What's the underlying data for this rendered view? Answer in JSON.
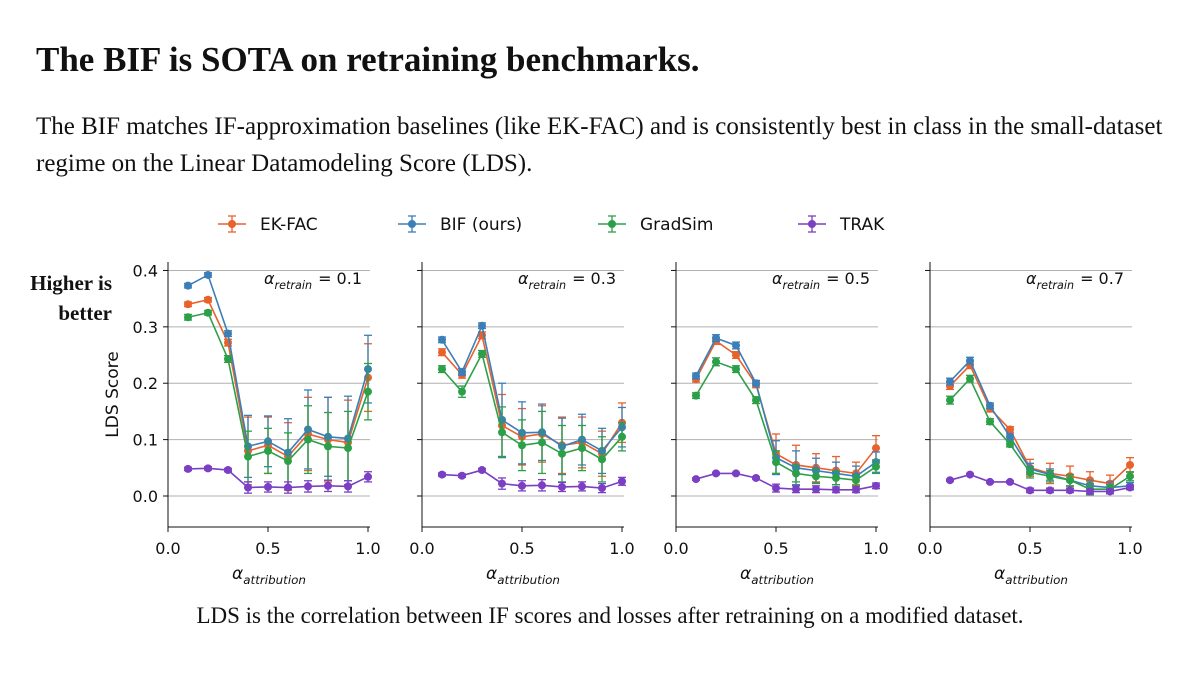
{
  "header": {
    "title": "The BIF is SOTA on retraining benchmarks.",
    "subtitle": "The BIF matches IF-approximation baselines (like EK-FAC) and is consistently best in class in the small-dataset regime on the Linear Datamodeling Score (LDS)."
  },
  "annotation": "Higher is better",
  "footer": "LDS is the correlation between IF scores and losses after retraining on a modified dataset.",
  "chart_data": [
    {
      "type": "line",
      "title": {
        "symbol": "α",
        "subscript": "retrain",
        "text": "= 0.1"
      },
      "xlabel": {
        "symbol": "α",
        "subscript": "attribution"
      },
      "ylabel": "LDS Score",
      "show_ytick_labels": true,
      "x": [
        0.1,
        0.2,
        0.3,
        0.4,
        0.5,
        0.6,
        0.7,
        0.8,
        0.9,
        1.0
      ],
      "xlim": [
        0,
        1.01
      ],
      "xticks": [
        {
          "value": 0,
          "label": "0.0"
        },
        0.5,
        {
          "value": 1,
          "label": "1.0"
        }
      ],
      "ylim": [
        -0.055,
        0.415
      ],
      "yticks": [
        {
          "value": 0,
          "label": "0.0"
        },
        0.1,
        0.2,
        0.3,
        0.4
      ],
      "grid": true,
      "series": [
        {
          "name": "EK-FAC",
          "color": "#e8622c",
          "values": [
            0.34,
            0.348,
            0.272,
            0.08,
            0.09,
            0.07,
            0.11,
            0.1,
            0.095,
            0.21
          ],
          "errors": [
            0.004,
            0.004,
            0.006,
            0.06,
            0.05,
            0.06,
            0.065,
            0.075,
            0.075,
            0.06
          ]
        },
        {
          "name": "BIF (ours)",
          "color": "#3c7fb8",
          "values": [
            0.373,
            0.392,
            0.288,
            0.088,
            0.097,
            0.077,
            0.118,
            0.105,
            0.102,
            0.225
          ],
          "errors": [
            0.004,
            0.004,
            0.005,
            0.055,
            0.045,
            0.06,
            0.07,
            0.07,
            0.075,
            0.06
          ]
        },
        {
          "name": "GradSim",
          "color": "#2ca048",
          "values": [
            0.317,
            0.325,
            0.243,
            0.07,
            0.08,
            0.062,
            0.1,
            0.088,
            0.085,
            0.185
          ],
          "errors": [
            0.005,
            0.004,
            0.006,
            0.045,
            0.04,
            0.05,
            0.06,
            0.06,
            0.065,
            0.05
          ]
        },
        {
          "name": "TRAK",
          "color": "#7b3fc4",
          "values": [
            0.048,
            0.049,
            0.046,
            0.015,
            0.016,
            0.015,
            0.017,
            0.018,
            0.017,
            0.034
          ],
          "errors": [
            0.003,
            0.003,
            0.003,
            0.01,
            0.009,
            0.01,
            0.01,
            0.01,
            0.01,
            0.009
          ]
        }
      ]
    },
    {
      "type": "line",
      "title": {
        "symbol": "α",
        "subscript": "retrain",
        "text": "= 0.3"
      },
      "xlabel": {
        "symbol": "α",
        "subscript": "attribution"
      },
      "show_ytick_labels": false,
      "x": [
        0.1,
        0.2,
        0.3,
        0.4,
        0.5,
        0.6,
        0.7,
        0.8,
        0.9,
        1.0
      ],
      "xlim": [
        0,
        1.01
      ],
      "xticks": [
        {
          "value": 0,
          "label": "0.0"
        },
        0.5,
        {
          "value": 1,
          "label": "1.0"
        }
      ],
      "ylim": [
        -0.055,
        0.415
      ],
      "yticks": [
        {
          "value": 0,
          "label": "0.0"
        },
        0.1,
        0.2,
        0.3,
        0.4
      ],
      "grid": true,
      "series": [
        {
          "name": "EK-FAC",
          "color": "#e8622c",
          "values": [
            0.255,
            0.215,
            0.285,
            0.125,
            0.105,
            0.11,
            0.09,
            0.095,
            0.075,
            0.13
          ],
          "errors": [
            0.006,
            0.006,
            0.006,
            0.055,
            0.05,
            0.05,
            0.05,
            0.045,
            0.04,
            0.035
          ]
        },
        {
          "name": "BIF (ours)",
          "color": "#3c7fb8",
          "values": [
            0.277,
            0.22,
            0.302,
            0.135,
            0.112,
            0.113,
            0.088,
            0.1,
            0.08,
            0.122
          ],
          "errors": [
            0.005,
            0.006,
            0.005,
            0.065,
            0.055,
            0.05,
            0.05,
            0.045,
            0.04,
            0.035
          ]
        },
        {
          "name": "GradSim",
          "color": "#2ca048",
          "values": [
            0.225,
            0.185,
            0.252,
            0.113,
            0.09,
            0.095,
            0.075,
            0.085,
            0.065,
            0.105
          ],
          "errors": [
            0.006,
            0.01,
            0.006,
            0.045,
            0.045,
            0.055,
            0.05,
            0.04,
            0.04,
            0.025
          ]
        },
        {
          "name": "TRAK",
          "color": "#7b3fc4",
          "values": [
            0.038,
            0.036,
            0.046,
            0.022,
            0.018,
            0.019,
            0.016,
            0.017,
            0.014,
            0.026
          ],
          "errors": [
            0.003,
            0.003,
            0.003,
            0.01,
            0.009,
            0.01,
            0.008,
            0.008,
            0.008,
            0.007
          ]
        }
      ]
    },
    {
      "type": "line",
      "title": {
        "symbol": "α",
        "subscript": "retrain",
        "text": "= 0.5"
      },
      "xlabel": {
        "symbol": "α",
        "subscript": "attribution"
      },
      "show_ytick_labels": false,
      "x": [
        0.1,
        0.2,
        0.3,
        0.4,
        0.5,
        0.6,
        0.7,
        0.8,
        0.9,
        1.0
      ],
      "xlim": [
        0,
        1.01
      ],
      "xticks": [
        {
          "value": 0,
          "label": "0.0"
        },
        0.5,
        {
          "value": 1,
          "label": "1.0"
        }
      ],
      "ylim": [
        -0.055,
        0.415
      ],
      "yticks": [
        {
          "value": 0,
          "label": "0.0"
        },
        0.1,
        0.2,
        0.3,
        0.4
      ],
      "grid": true,
      "series": [
        {
          "name": "EK-FAC",
          "color": "#e8622c",
          "values": [
            0.207,
            0.275,
            0.25,
            0.198,
            0.075,
            0.055,
            0.05,
            0.045,
            0.04,
            0.085
          ],
          "errors": [
            0.005,
            0.006,
            0.006,
            0.006,
            0.035,
            0.035,
            0.025,
            0.025,
            0.02,
            0.022
          ]
        },
        {
          "name": "BIF (ours)",
          "color": "#3c7fb8",
          "values": [
            0.213,
            0.28,
            0.267,
            0.2,
            0.068,
            0.05,
            0.045,
            0.04,
            0.035,
            0.06
          ],
          "errors": [
            0.005,
            0.006,
            0.006,
            0.005,
            0.03,
            0.03,
            0.022,
            0.02,
            0.018,
            0.018
          ]
        },
        {
          "name": "GradSim",
          "color": "#2ca048",
          "values": [
            0.178,
            0.238,
            0.225,
            0.17,
            0.06,
            0.04,
            0.035,
            0.032,
            0.028,
            0.052
          ],
          "errors": [
            0.005,
            0.007,
            0.006,
            0.006,
            0.02,
            0.015,
            0.013,
            0.012,
            0.01,
            0.012
          ]
        },
        {
          "name": "TRAK",
          "color": "#7b3fc4",
          "values": [
            0.03,
            0.04,
            0.04,
            0.032,
            0.014,
            0.012,
            0.012,
            0.011,
            0.011,
            0.018
          ],
          "errors": [
            0.002,
            0.002,
            0.002,
            0.002,
            0.007,
            0.006,
            0.006,
            0.005,
            0.005,
            0.005
          ]
        }
      ]
    },
    {
      "type": "line",
      "title": {
        "symbol": "α",
        "subscript": "retrain",
        "text": "= 0.7"
      },
      "xlabel": {
        "symbol": "α",
        "subscript": "attribution"
      },
      "show_ytick_labels": false,
      "x": [
        0.1,
        0.2,
        0.3,
        0.4,
        0.5,
        0.6,
        0.7,
        0.8,
        0.9,
        1.0
      ],
      "xlim": [
        0,
        1.01
      ],
      "xticks": [
        {
          "value": 0,
          "label": "0.0"
        },
        0.5,
        {
          "value": 1,
          "label": "1.0"
        }
      ],
      "ylim": [
        -0.055,
        0.415
      ],
      "yticks": [
        {
          "value": 0,
          "label": "0.0"
        },
        0.1,
        0.2,
        0.3,
        0.4
      ],
      "grid": true,
      "series": [
        {
          "name": "EK-FAC",
          "color": "#e8622c",
          "values": [
            0.195,
            0.232,
            0.155,
            0.118,
            0.05,
            0.04,
            0.035,
            0.028,
            0.022,
            0.055
          ],
          "errors": [
            0.006,
            0.006,
            0.006,
            0.005,
            0.015,
            0.018,
            0.018,
            0.015,
            0.015,
            0.013
          ]
        },
        {
          "name": "BIF (ours)",
          "color": "#3c7fb8",
          "values": [
            0.203,
            0.24,
            0.16,
            0.105,
            0.048,
            0.038,
            0.028,
            0.018,
            0.015,
            0.018
          ],
          "errors": [
            0.006,
            0.006,
            0.005,
            0.005,
            0.01,
            0.01,
            0.01,
            0.01,
            0.01,
            0.006
          ]
        },
        {
          "name": "GradSim",
          "color": "#2ca048",
          "values": [
            0.17,
            0.208,
            0.132,
            0.092,
            0.042,
            0.035,
            0.028,
            0.012,
            0.012,
            0.035
          ],
          "errors": [
            0.007,
            0.006,
            0.005,
            0.005,
            0.01,
            0.01,
            0.01,
            0.01,
            0.008,
            0.008
          ]
        },
        {
          "name": "TRAK",
          "color": "#7b3fc4",
          "values": [
            0.028,
            0.038,
            0.025,
            0.025,
            0.01,
            0.01,
            0.01,
            0.008,
            0.008,
            0.015
          ],
          "errors": [
            0.002,
            0.002,
            0.002,
            0.002,
            0.004,
            0.004,
            0.004,
            0.004,
            0.004,
            0.004
          ]
        }
      ]
    }
  ]
}
